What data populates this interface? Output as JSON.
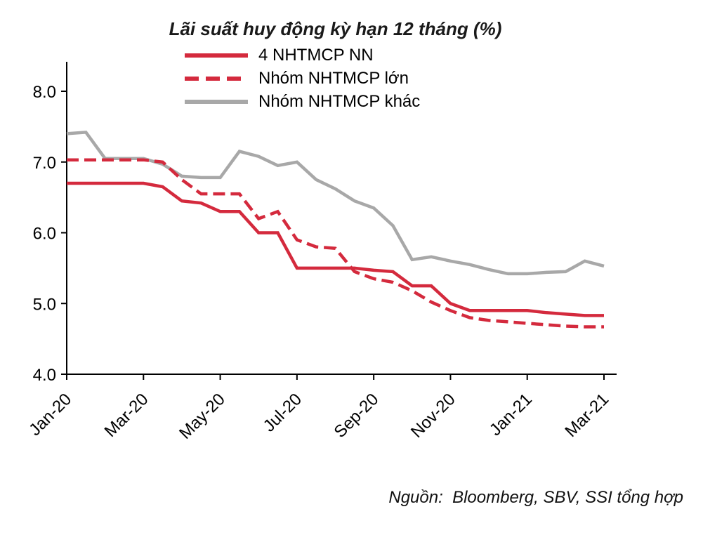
{
  "chart_data": {
    "type": "line",
    "title": "Lãi suất huy động kỳ hạn 12 tháng (%)",
    "source": "Nguồn:  Bloomberg, SBV, SSI tổng hợp",
    "legend_position": "top",
    "grid": false,
    "x_unit": "semi-monthly points, Jan-2020 to Mar-2021",
    "x_tick_labels": [
      "Jan-20",
      "Mar-20",
      "May-20",
      "Jul-20",
      "Sep-20",
      "Nov-20",
      "Jan-21",
      "Mar-21"
    ],
    "x_tick_indices": [
      0,
      4,
      8,
      12,
      16,
      20,
      24,
      28
    ],
    "y_ticks": [
      4.0,
      5.0,
      6.0,
      7.0,
      8.0
    ],
    "ylim": [
      4.0,
      8.4
    ],
    "ylabel": "%",
    "colors": {
      "red": "#d42a3d",
      "gray": "#a8a8a8",
      "axis": "#000000"
    },
    "series": [
      {
        "name": "4 NHTMCP NN",
        "color": "#d42a3d",
        "style": "solid",
        "values": [
          6.7,
          6.7,
          6.7,
          6.7,
          6.7,
          6.65,
          6.45,
          6.42,
          6.3,
          6.3,
          6.0,
          6.0,
          5.5,
          5.5,
          5.5,
          5.5,
          5.47,
          5.45,
          5.25,
          5.25,
          5.0,
          4.9,
          4.9,
          4.9,
          4.9,
          4.87,
          4.85,
          4.83,
          4.83
        ]
      },
      {
        "name": "Nhóm NHTMCP lớn",
        "color": "#d42a3d",
        "style": "dashed",
        "values": [
          7.03,
          7.03,
          7.03,
          7.03,
          7.03,
          7.0,
          6.75,
          6.55,
          6.55,
          6.55,
          6.2,
          6.3,
          5.9,
          5.8,
          5.78,
          5.45,
          5.35,
          5.3,
          5.18,
          5.02,
          4.9,
          4.8,
          4.76,
          4.74,
          4.72,
          4.7,
          4.68,
          4.67,
          4.67
        ]
      },
      {
        "name": "Nhóm NHTMCP khác",
        "color": "#a8a8a8",
        "style": "solid",
        "values": [
          7.4,
          7.42,
          7.05,
          7.05,
          7.05,
          6.97,
          6.8,
          6.78,
          6.78,
          7.15,
          7.08,
          6.95,
          7.0,
          6.75,
          6.62,
          6.45,
          6.35,
          6.1,
          5.62,
          5.66,
          5.6,
          5.55,
          5.48,
          5.42,
          5.42,
          5.44,
          5.45,
          5.6,
          5.53
        ]
      }
    ]
  }
}
